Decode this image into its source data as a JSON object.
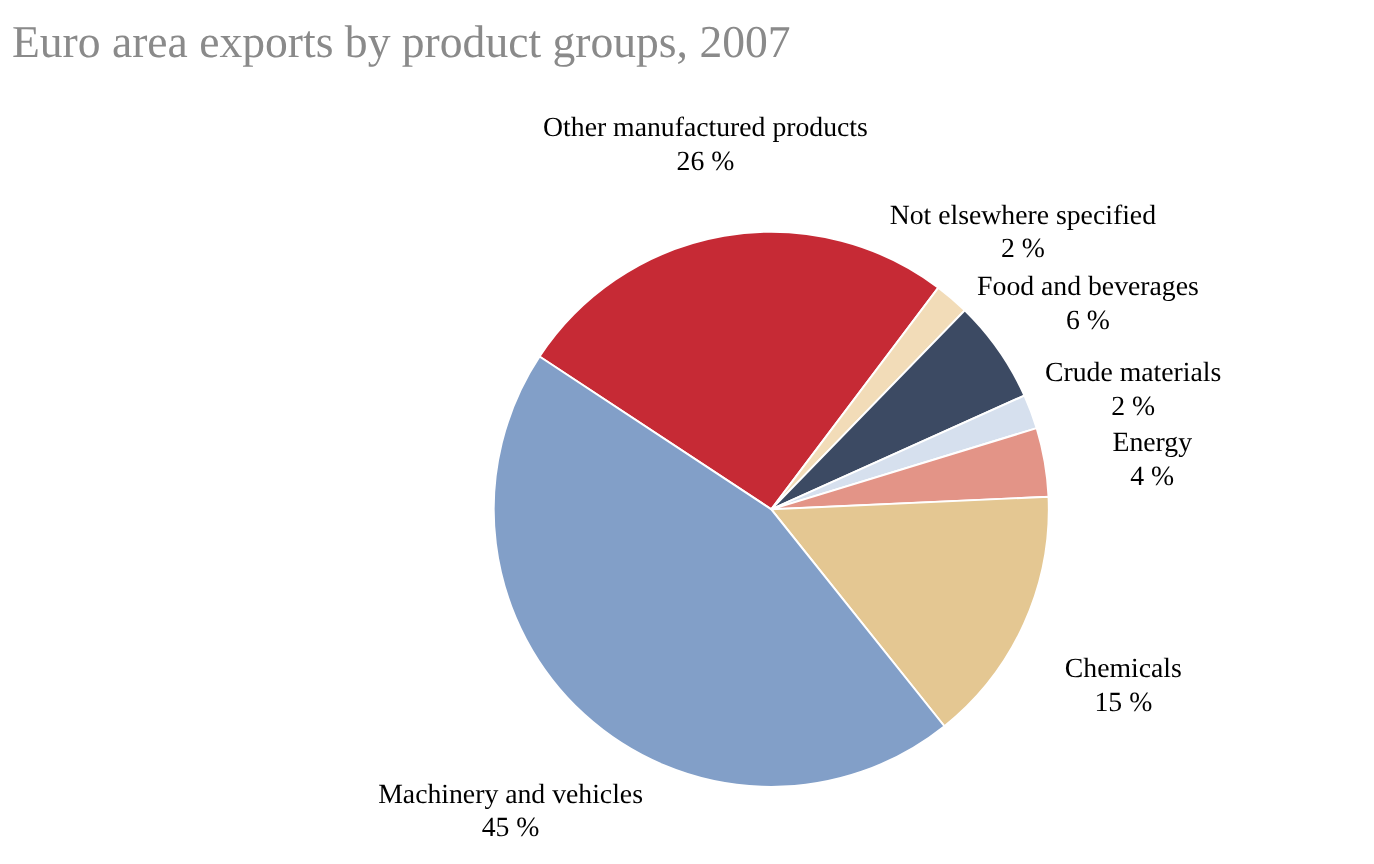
{
  "chart_data": {
    "type": "pie",
    "title": "Euro area exports by product groups, 2007",
    "categories": [
      "Other manufactured products",
      "Not elsewhere specified",
      "Food and beverages",
      "Crude materials",
      "Energy",
      "Chemicals",
      "Machinery and vehicles"
    ],
    "values": [
      26,
      2,
      6,
      2,
      4,
      15,
      45
    ],
    "value_labels": [
      "26 %",
      "2 %",
      "6 %",
      "2 %",
      "4 %",
      "15 %",
      "45 %"
    ],
    "colors": [
      "#c62a35",
      "#f2dcb8",
      "#3c4a63",
      "#d6e0ee",
      "#e39487",
      "#e4c792",
      "#829fc8"
    ]
  }
}
